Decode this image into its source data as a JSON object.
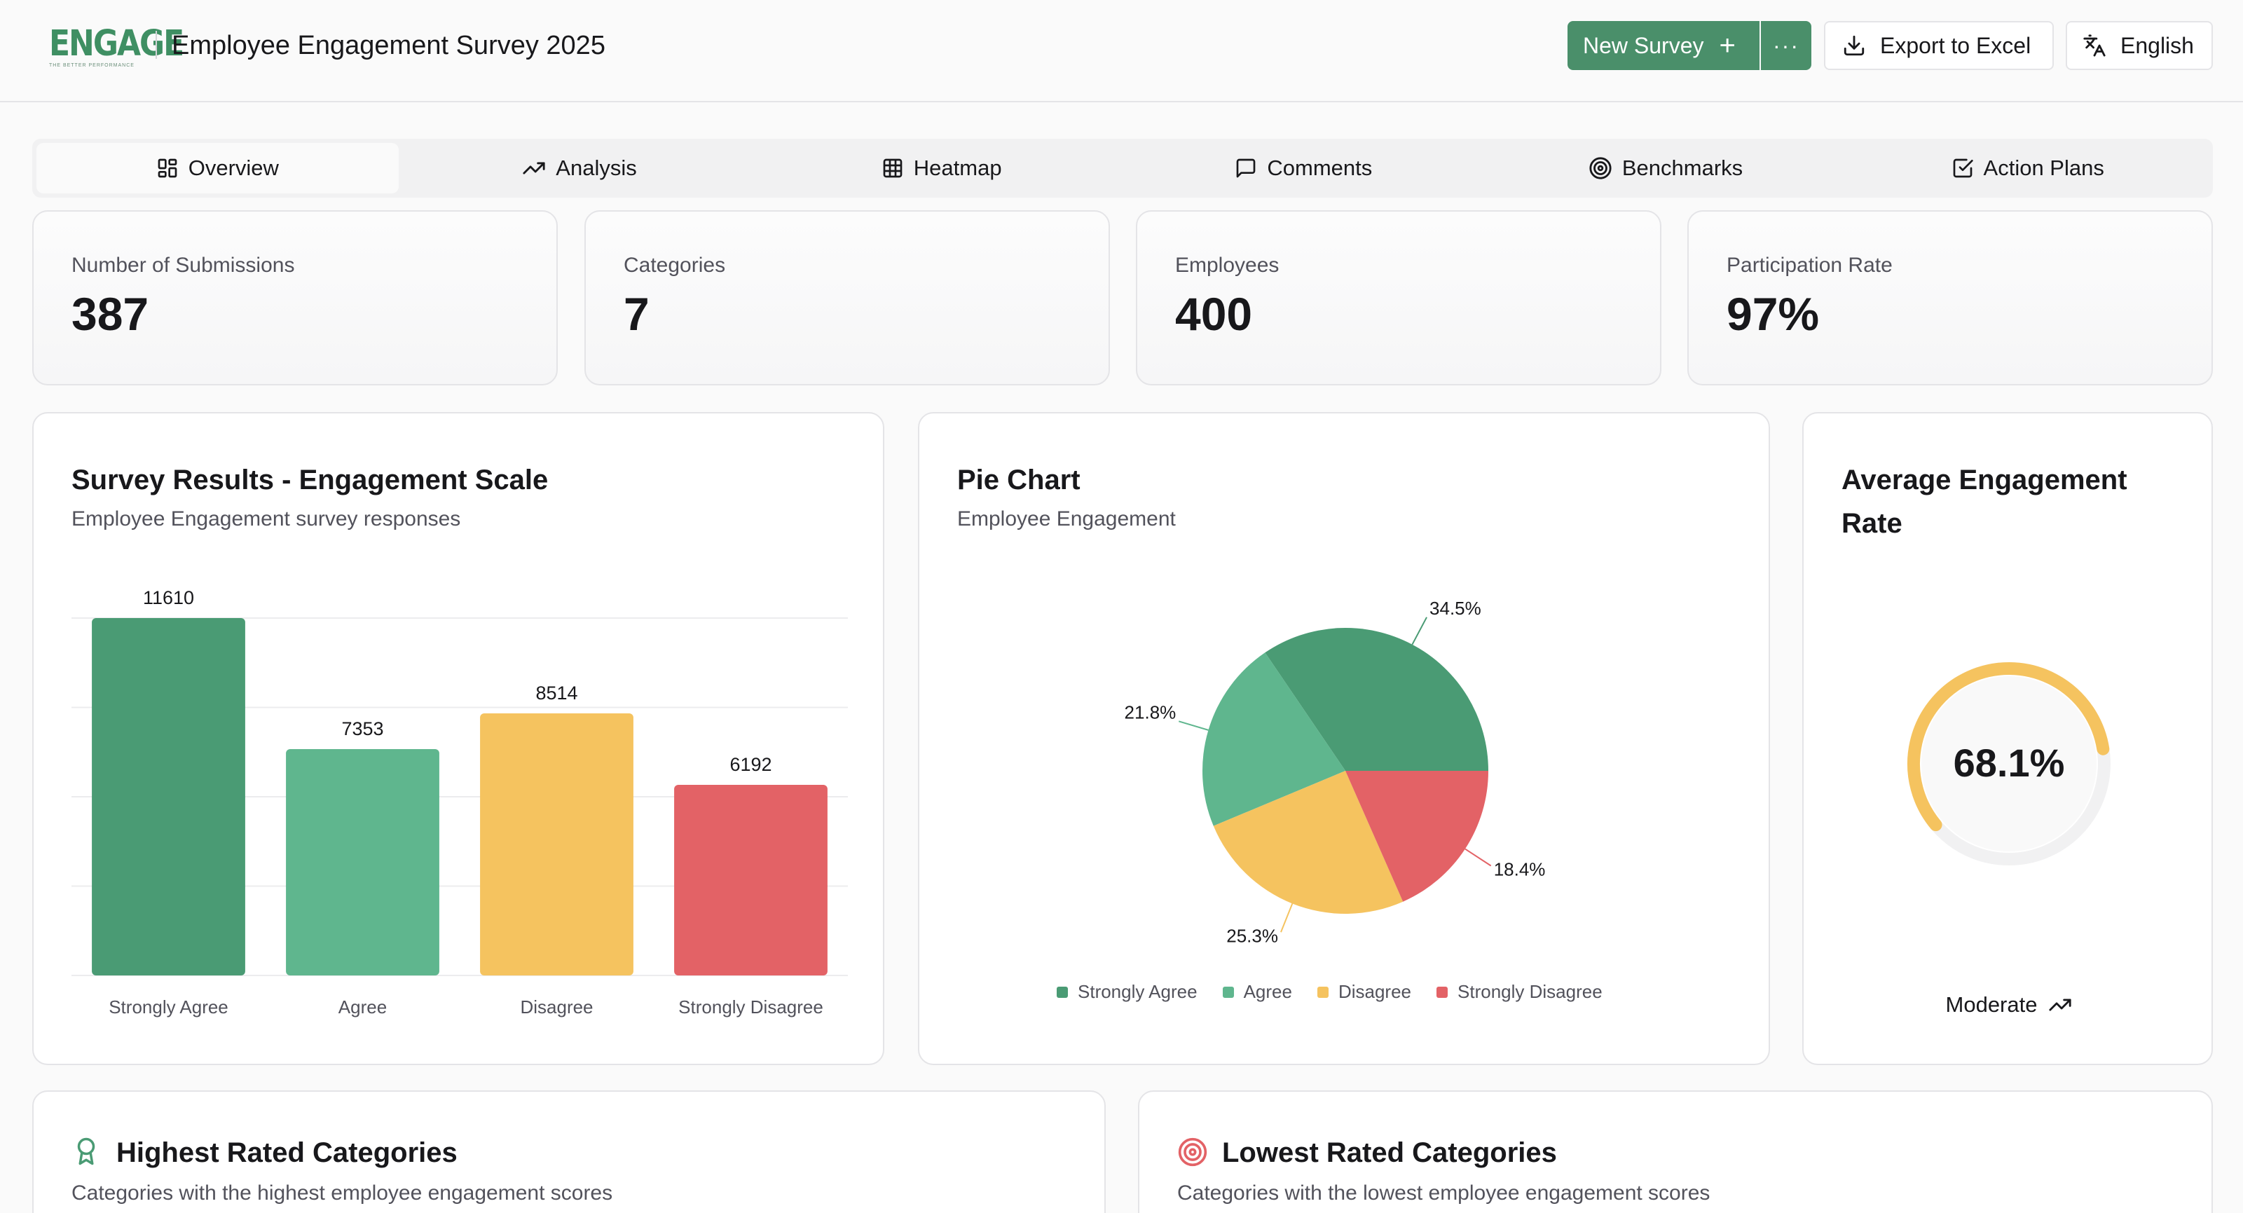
{
  "header": {
    "logo_text": "ENGAGE",
    "logo_subtext": "THE BETTER PERFORMANCE",
    "title": "Employee Engagement Survey 2025",
    "new_survey_label": "New Survey",
    "more_label": "···",
    "export_label": "Export to Excel",
    "language_label": "English"
  },
  "tabs": [
    {
      "label": "Overview",
      "icon": "layout-grid-icon",
      "active": true
    },
    {
      "label": "Analysis",
      "icon": "trending-up-icon",
      "active": false
    },
    {
      "label": "Heatmap",
      "icon": "table-grid-icon",
      "active": false
    },
    {
      "label": "Comments",
      "icon": "message-square-icon",
      "active": false
    },
    {
      "label": "Benchmarks",
      "icon": "target-icon",
      "active": false
    },
    {
      "label": "Action Plans",
      "icon": "check-square-icon",
      "active": false
    }
  ],
  "stats": [
    {
      "label": "Number of Submissions",
      "value": "387"
    },
    {
      "label": "Categories",
      "value": "7"
    },
    {
      "label": "Employees",
      "value": "400"
    },
    {
      "label": "Participation Rate",
      "value": "97%"
    }
  ],
  "bar_card": {
    "title": "Survey Results - Engagement Scale",
    "subtitle": "Employee Engagement survey responses"
  },
  "pie_card": {
    "title": "Pie Chart",
    "subtitle": "Employee Engagement"
  },
  "gauge_card": {
    "title": "Average Engagement Rate",
    "value": 68.1,
    "value_label": "68.1%",
    "status": "Moderate"
  },
  "highest": {
    "title": "Highest Rated Categories",
    "subtitle": "Categories with the highest employee engagement scores"
  },
  "lowest": {
    "title": "Lowest Rated Categories",
    "subtitle": "Categories with the lowest employee engagement scores"
  },
  "colors": {
    "strongly_agree": "#4a9b74",
    "agree": "#5fb68e",
    "disagree": "#f5c35f",
    "strongly_disagree": "#e36266",
    "brand": "#4a8f6a",
    "gauge_track": "#f1f1f2"
  },
  "chart_data": [
    {
      "type": "bar",
      "title": "Survey Results - Engagement Scale",
      "categories": [
        "Strongly Agree",
        "Agree",
        "Disagree",
        "Strongly Disagree"
      ],
      "values": [
        11610,
        7353,
        8514,
        6192
      ],
      "ylim": [
        0,
        11610
      ],
      "grid": true,
      "xlabel": "",
      "ylabel": ""
    },
    {
      "type": "pie",
      "title": "Pie Chart",
      "categories": [
        "Strongly Agree",
        "Agree",
        "Disagree",
        "Strongly Disagree"
      ],
      "values": [
        34.5,
        21.8,
        25.3,
        18.4
      ],
      "value_labels": [
        "34.5%",
        "21.8%",
        "25.3%",
        "18.4%"
      ],
      "legend": "bottom"
    }
  ]
}
